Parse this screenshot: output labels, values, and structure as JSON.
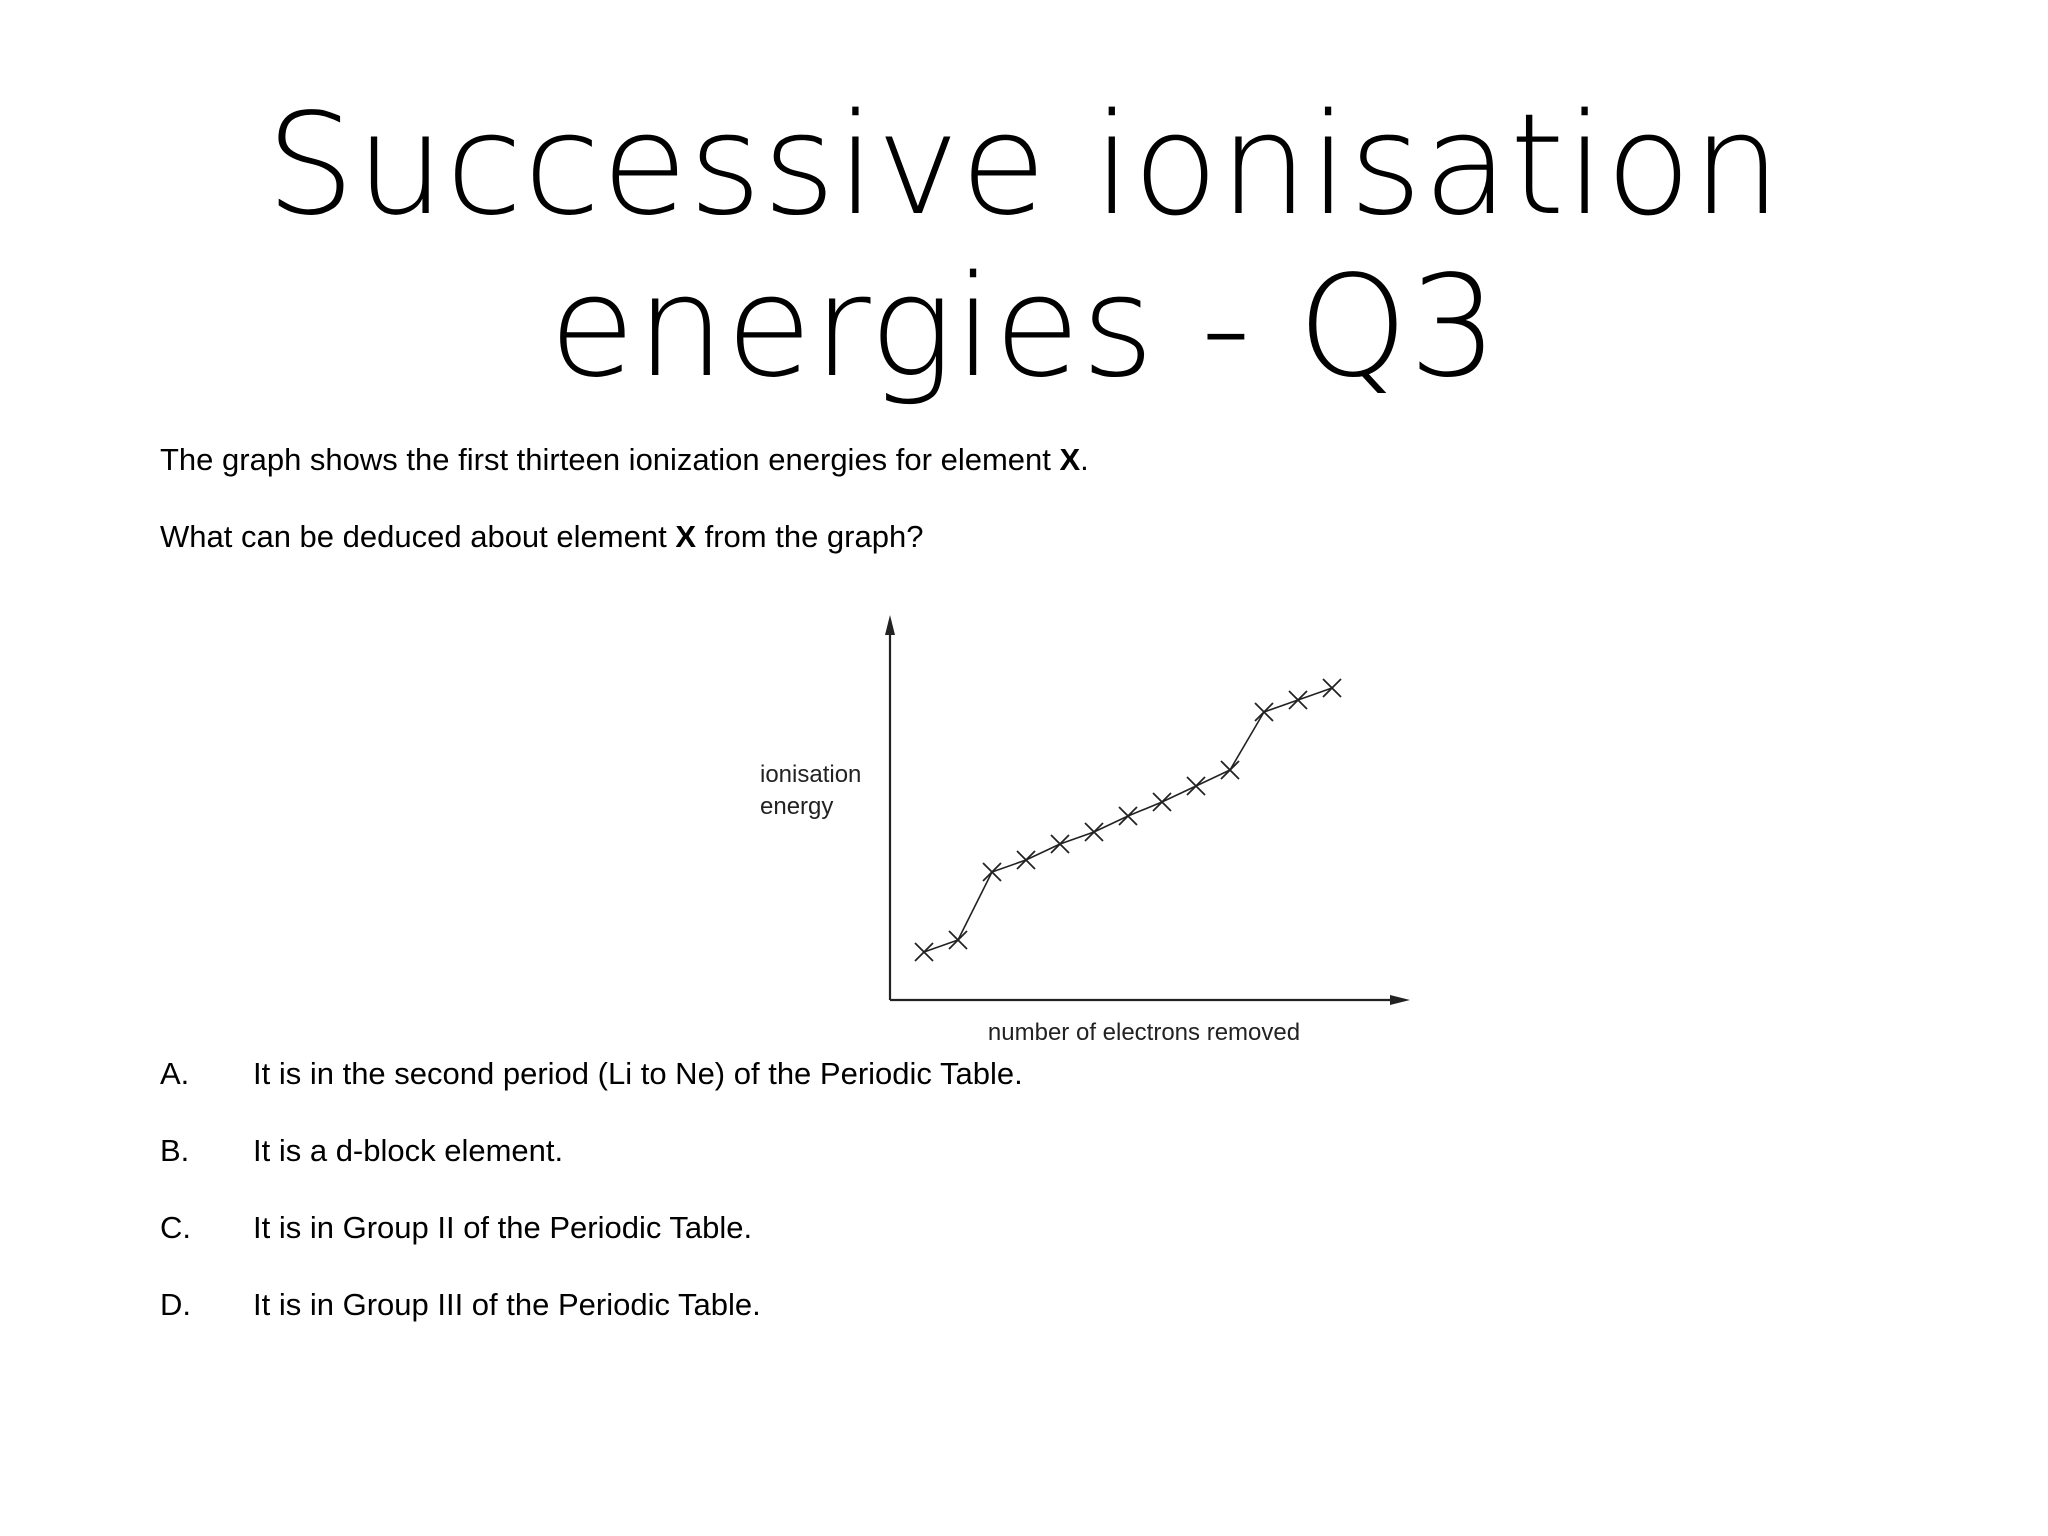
{
  "slide": {
    "title_line1": "Successive ionisation",
    "title_line2": "energies - Q3"
  },
  "question": {
    "line1_before": "The graph shows the first thirteen ionization energies for element ",
    "line1_bold": "X",
    "line1_after": ".",
    "line2_before": "What can be deduced about element ",
    "line2_bold": "X",
    "line2_after": " from the graph?"
  },
  "options": [
    {
      "letter": "A.",
      "text": "It is in the second period (Li to Ne) of the Periodic Table."
    },
    {
      "letter": "B.",
      "text": "It is a d-block element."
    },
    {
      "letter": "C.",
      "text": "It is in Group II of the Periodic Table."
    },
    {
      "letter": "D.",
      "text": "It is in Group III of the Periodic Table."
    }
  ],
  "chart_data": {
    "type": "line",
    "title": "",
    "xlabel": "number of electrons removed",
    "ylabel_line1": "ionisation",
    "ylabel_line2": "energy",
    "marker": "x",
    "x": [
      1,
      2,
      3,
      4,
      5,
      6,
      7,
      8,
      9,
      10,
      11,
      12,
      13
    ],
    "values": [
      1.2,
      1.5,
      3.2,
      3.5,
      3.9,
      4.2,
      4.6,
      4.95,
      5.35,
      5.75,
      7.2,
      7.5,
      7.8
    ],
    "ylim": [
      0,
      10
    ],
    "xlim": [
      0,
      15
    ],
    "grid": false,
    "axis_ticks": false
  },
  "colors": {
    "text": "#000000",
    "background": "#ffffff",
    "chart_line": "#222222"
  }
}
